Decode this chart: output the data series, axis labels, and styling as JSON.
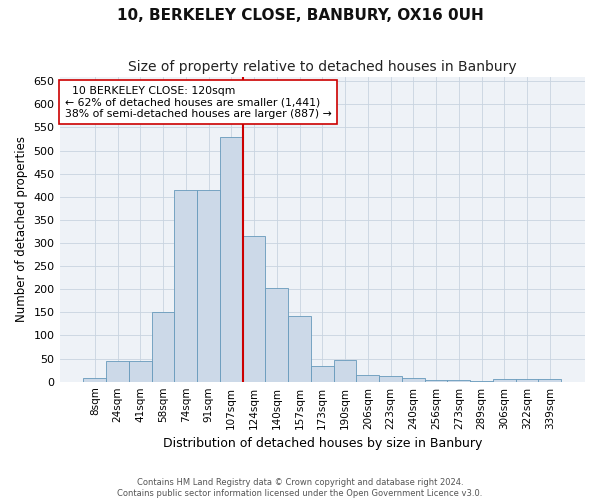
{
  "title": "10, BERKELEY CLOSE, BANBURY, OX16 0UH",
  "subtitle": "Size of property relative to detached houses in Banbury",
  "xlabel": "Distribution of detached houses by size in Banbury",
  "ylabel": "Number of detached properties",
  "categories": [
    "8sqm",
    "24sqm",
    "41sqm",
    "58sqm",
    "74sqm",
    "91sqm",
    "107sqm",
    "124sqm",
    "140sqm",
    "157sqm",
    "173sqm",
    "190sqm",
    "206sqm",
    "223sqm",
    "240sqm",
    "256sqm",
    "273sqm",
    "289sqm",
    "306sqm",
    "322sqm",
    "339sqm"
  ],
  "values": [
    8,
    44,
    44,
    150,
    415,
    415,
    530,
    315,
    203,
    142,
    33,
    47,
    14,
    13,
    8,
    3,
    3,
    1,
    5,
    5,
    5
  ],
  "bar_color": "#ccd9e8",
  "bar_edge_color": "#6699bb",
  "vline_color": "#cc0000",
  "vline_position": 7,
  "annotation_title": "10 BERKELEY CLOSE: 120sqm",
  "annotation_line1": "← 62% of detached houses are smaller (1,441)",
  "annotation_line2": "38% of semi-detached houses are larger (887) →",
  "ylim": [
    0,
    660
  ],
  "yticks": [
    0,
    50,
    100,
    150,
    200,
    250,
    300,
    350,
    400,
    450,
    500,
    550,
    600,
    650
  ],
  "grid_color": "#c8d4e0",
  "bg_color": "#eef2f7",
  "footer1": "Contains HM Land Registry data © Crown copyright and database right 2024.",
  "footer2": "Contains public sector information licensed under the Open Government Licence v3.0."
}
